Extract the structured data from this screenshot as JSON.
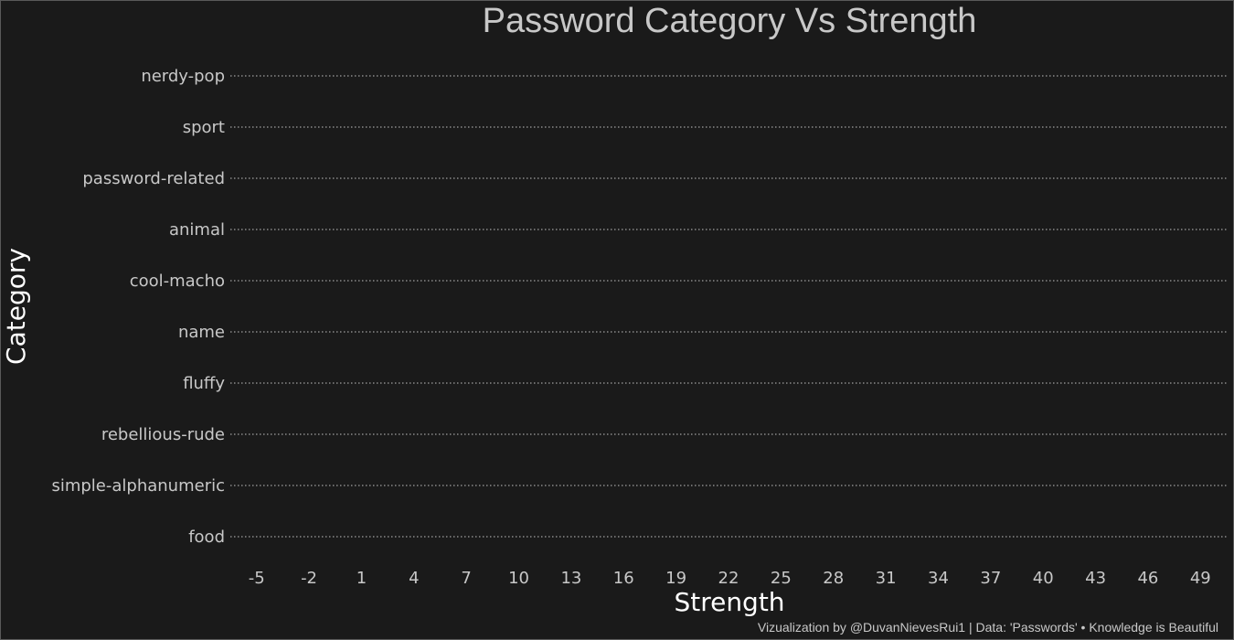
{
  "chart_data": {
    "type": "scatter",
    "title": "Password Category Vs Strength",
    "xlabel": "Strength",
    "ylabel": "Category",
    "categories": [
      "nerdy-pop",
      "sport",
      "password-related",
      "animal",
      "cool-macho",
      "name",
      "fluffy",
      "rebellious-rude",
      "simple-alphanumeric",
      "food"
    ],
    "x_ticks": [
      -5,
      -2,
      1,
      4,
      7,
      10,
      13,
      16,
      19,
      22,
      25,
      28,
      31,
      34,
      37,
      40,
      43,
      46,
      49
    ],
    "xlim": [
      -6.5,
      50.5
    ],
    "grid": "horizontal-dotted",
    "points": [],
    "caption": "Vizualization by @DuvanNievesRui1 | Data: 'Passwords' • Knowledge is Beautiful",
    "colors": {
      "background": "#1a1a1a",
      "text": "#c8c8c8",
      "axis_title": "#ffffff",
      "grid": "#a0a0a0"
    }
  }
}
